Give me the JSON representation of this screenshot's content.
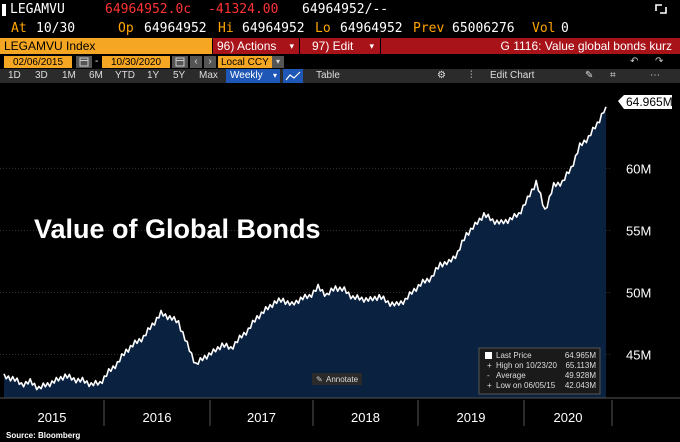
{
  "ticker_bar": {
    "ticker": "LEGAMVU",
    "last_price": "64964952.0c",
    "change": "-41324.00",
    "bid_ask": "64964952/--",
    "at_label": "At",
    "at_value": "10/30",
    "open_label": "Op",
    "open_value": "64964952",
    "high_label": "Hi",
    "high_value": "64964952",
    "low_label": "Lo",
    "low_value": "64964952",
    "prev_label": "Prev",
    "prev_value": "65006276",
    "vol_label": "Vol",
    "vol_value": "0"
  },
  "menu_bar": {
    "index_name": "LEGAMVU Index",
    "actions_label": "96) Actions",
    "edit_label": "97) Edit",
    "function_title": "G 1116: Value global bonds kurz"
  },
  "date_bar": {
    "start_date": "02/06/2015",
    "end_date": "10/30/2020",
    "currency": "Local CCY"
  },
  "toolbar": {
    "periods": [
      "1D",
      "3D",
      "1M",
      "6M",
      "YTD",
      "1Y",
      "5Y",
      "Max"
    ],
    "frequency": "Weekly",
    "table_label": "Table",
    "edit_chart_label": "Edit Chart"
  },
  "chart_data": {
    "type": "area",
    "title": "Value of Global Bonds",
    "x": [
      "2015-01",
      "2015-02",
      "2015-03",
      "2015-04",
      "2015-05",
      "2015-06",
      "2015-07",
      "2015-08",
      "2015-09",
      "2015-10",
      "2015-11",
      "2015-12",
      "2016-01",
      "2016-02",
      "2016-03",
      "2016-04",
      "2016-05",
      "2016-06",
      "2016-07",
      "2016-08",
      "2016-09",
      "2016-10",
      "2016-11",
      "2016-12",
      "2017-01",
      "2017-02",
      "2017-03",
      "2017-04",
      "2017-05",
      "2017-06",
      "2017-07",
      "2017-08",
      "2017-09",
      "2017-10",
      "2017-11",
      "2017-12",
      "2018-01",
      "2018-02",
      "2018-03",
      "2018-04",
      "2018-05",
      "2018-06",
      "2018-07",
      "2018-08",
      "2018-09",
      "2018-10",
      "2018-11",
      "2018-12",
      "2019-01",
      "2019-02",
      "2019-03",
      "2019-04",
      "2019-05",
      "2019-06",
      "2019-07",
      "2019-08",
      "2019-09",
      "2019-10",
      "2019-11",
      "2019-12",
      "2020-01",
      "2020-02",
      "2020-03",
      "2020-04",
      "2020-05",
      "2020-06",
      "2020-07",
      "2020-08",
      "2020-09",
      "2020-10"
    ],
    "values": [
      43.2,
      43.1,
      42.6,
      42.8,
      42.3,
      42.6,
      42.9,
      43.3,
      43.0,
      42.9,
      42.6,
      42.7,
      43.6,
      44.3,
      45.3,
      45.9,
      46.4,
      47.4,
      48.3,
      48.0,
      47.6,
      45.8,
      44.2,
      44.8,
      45.2,
      45.8,
      45.5,
      46.3,
      47.0,
      48.0,
      48.6,
      49.2,
      49.4,
      49.0,
      49.5,
      49.7,
      50.4,
      49.8,
      50.4,
      50.2,
      49.6,
      49.5,
      49.4,
      49.7,
      49.2,
      49.0,
      49.4,
      50.2,
      50.8,
      51.2,
      52.3,
      52.4,
      53.2,
      54.7,
      55.4,
      56.3,
      55.8,
      55.6,
      55.9,
      56.3,
      57.5,
      58.9,
      56.6,
      58.6,
      58.9,
      60.0,
      61.8,
      62.5,
      63.6,
      64.965
    ],
    "x_ticks": [
      "2015",
      "2016",
      "2017",
      "2018",
      "2019",
      "2020"
    ],
    "y_ticks": [
      "45M",
      "50M",
      "55M",
      "60M"
    ],
    "y_ticks_values": [
      45,
      50,
      55,
      60
    ],
    "ylim": [
      41.5,
      66.8
    ],
    "last_value_label": "64.965M",
    "colors": {
      "line": "#ffffff",
      "fill": "#0b2140",
      "grid": "#333333",
      "bg": "#000000"
    }
  },
  "legend": {
    "items": [
      {
        "label": "Last Price",
        "value": "64.965M"
      },
      {
        "label": "High on 10/23/20",
        "value": "65.113M"
      },
      {
        "label": "Average",
        "value": "49.928M"
      },
      {
        "label": "Low on 06/05/15",
        "value": "42.043M"
      }
    ]
  },
  "annotate_label": "Annotate",
  "source_label": "Source: Bloomberg"
}
